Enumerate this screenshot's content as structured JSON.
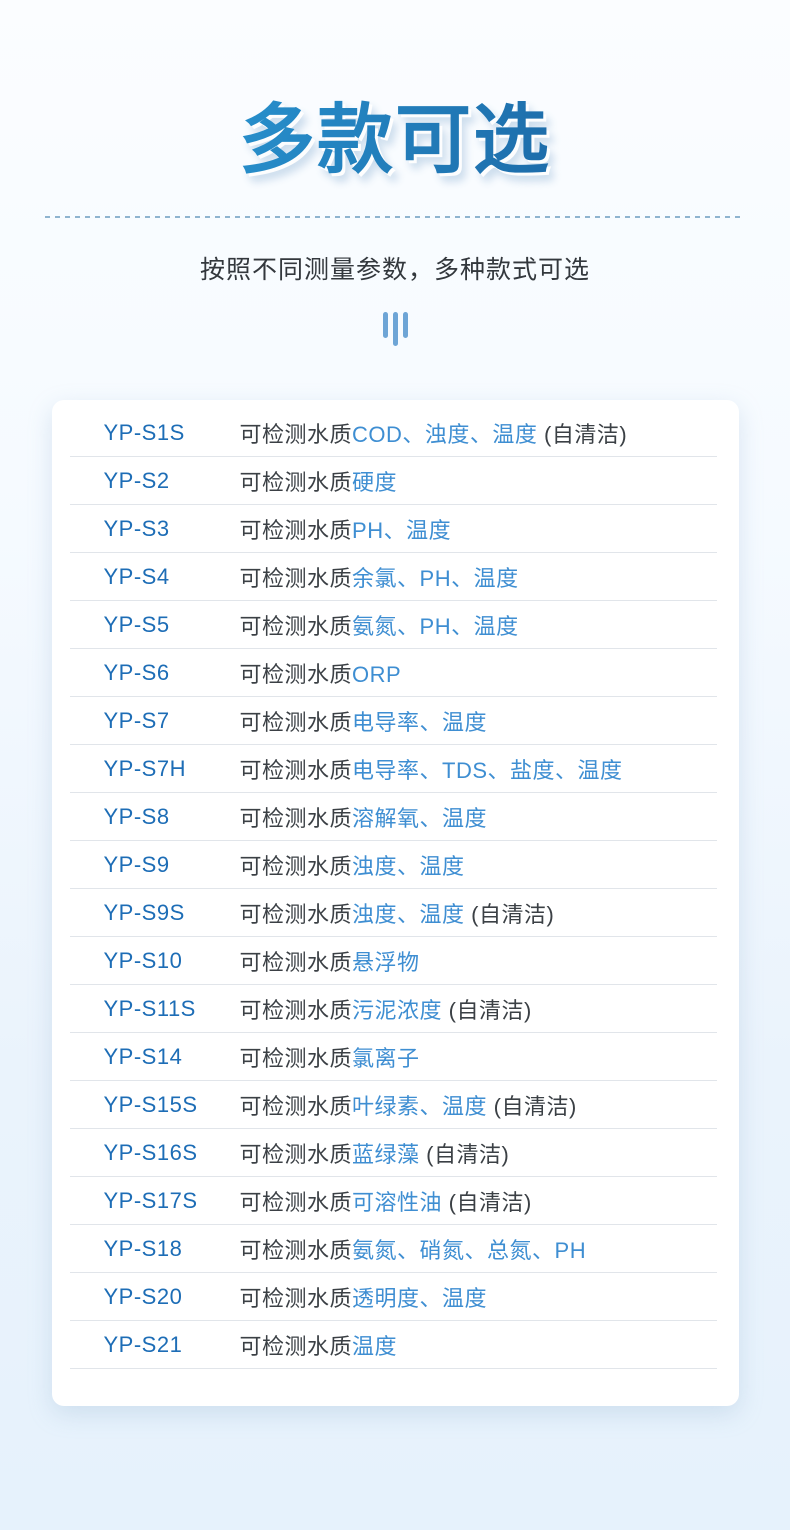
{
  "header": {
    "title": "多款可选",
    "subtitle": "按照不同测量参数，多种款式可选"
  },
  "icons": {
    "bars_icon": "three-vertical-bars"
  },
  "colors": {
    "title_gradient_start": "#2b9dd9",
    "title_gradient_end": "#1a619f",
    "model_blue": "#1d6db6",
    "param_blue": "#3e8ed2",
    "text_dark": "#3b4045",
    "dash_blue": "#8fb4cf",
    "bars_blue": "#6ea5d6",
    "card_bg": "#ffffff",
    "page_bg_top": "#fbfdff",
    "page_bg_bottom": "#e6f2fc"
  },
  "table": {
    "prefix": "可检测水质",
    "rows": [
      {
        "model": "YP-S1S",
        "params": "COD、浊度、温度",
        "suffix": " (自清洁)"
      },
      {
        "model": "YP-S2",
        "params": "硬度",
        "suffix": ""
      },
      {
        "model": "YP-S3",
        "params": "PH、温度",
        "suffix": ""
      },
      {
        "model": "YP-S4",
        "params": "余氯、PH、温度",
        "suffix": ""
      },
      {
        "model": "YP-S5",
        "params": "氨氮、PH、温度",
        "suffix": ""
      },
      {
        "model": "YP-S6",
        "params": "ORP",
        "suffix": ""
      },
      {
        "model": "YP-S7",
        "params": "电导率、温度",
        "suffix": ""
      },
      {
        "model": "YP-S7H",
        "params": "电导率、TDS、盐度、温度",
        "suffix": ""
      },
      {
        "model": "YP-S8",
        "params": "溶解氧、温度",
        "suffix": ""
      },
      {
        "model": "YP-S9",
        "params": "浊度、温度",
        "suffix": ""
      },
      {
        "model": "YP-S9S",
        "params": "浊度、温度",
        "suffix": " (自清洁)"
      },
      {
        "model": "YP-S10",
        "params": "悬浮物",
        "suffix": ""
      },
      {
        "model": "YP-S11S",
        "params": "污泥浓度",
        "suffix": " (自清洁)"
      },
      {
        "model": "YP-S14",
        "params": "氯离子",
        "suffix": ""
      },
      {
        "model": "YP-S15S",
        "params": "叶绿素、温度",
        "suffix": " (自清洁)"
      },
      {
        "model": "YP-S16S",
        "params": "蓝绿藻",
        "suffix": " (自清洁)"
      },
      {
        "model": "YP-S17S",
        "params": "可溶性油",
        "suffix": " (自清洁)"
      },
      {
        "model": "YP-S18",
        "params": "氨氮、硝氮、总氮、PH",
        "suffix": ""
      },
      {
        "model": "YP-S20",
        "params": "透明度、温度",
        "suffix": ""
      },
      {
        "model": "YP-S21",
        "params": "温度",
        "suffix": ""
      }
    ]
  }
}
